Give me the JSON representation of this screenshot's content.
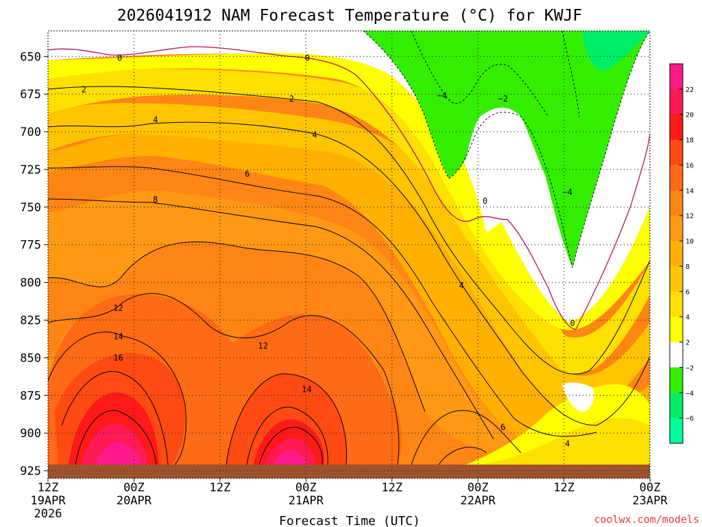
{
  "chart_data": {
    "type": "heatmap",
    "title": "2026041912 NAM Forecast Temperature (°C) for KWJF",
    "xlabel": "Forecast Time (UTC)",
    "ylabel": "",
    "credit": "coolwx.com/models",
    "y_axis": {
      "levels": [
        650,
        675,
        700,
        725,
        750,
        775,
        800,
        825,
        850,
        875,
        900,
        925
      ],
      "ylim": [
        930,
        633
      ],
      "grid": "dotted"
    },
    "x_axis": {
      "ticks": [
        {
          "hour": "12Z",
          "date": "19APR",
          "year": "2026"
        },
        {
          "hour": "00Z",
          "date": "20APR",
          "year": ""
        },
        {
          "hour": "12Z",
          "date": "",
          "year": ""
        },
        {
          "hour": "00Z",
          "date": "21APR",
          "year": ""
        },
        {
          "hour": "12Z",
          "date": "",
          "year": ""
        },
        {
          "hour": "00Z",
          "date": "22APR",
          "year": ""
        },
        {
          "hour": "12Z",
          "date": "",
          "year": ""
        },
        {
          "hour": "00Z",
          "date": "23APR",
          "year": ""
        }
      ],
      "forecast_hours": [
        0,
        12,
        24,
        36,
        48,
        60,
        72,
        84
      ]
    },
    "colorbar": {
      "labels": [
        "22",
        "20",
        "18",
        "16",
        "14",
        "12",
        "10",
        "8",
        "6",
        "4",
        "2",
        "−2",
        "−4",
        "−6"
      ],
      "colors": [
        "#ff1a8c",
        "#ff1a54",
        "#ff1a1a",
        "#ff4a12",
        "#ff6a14",
        "#ff8514",
        "#ff9914",
        "#ffb000",
        "#ffc400",
        "#ffe000",
        "#ffff00",
        "#ffffff",
        "#33ee00",
        "#00ee66",
        "#00ff99"
      ]
    },
    "contour_labels": [
      {
        "text": "0",
        "hour": 10.0,
        "p": 651
      },
      {
        "text": "0",
        "hour": 36.2,
        "p": 651
      },
      {
        "text": "0",
        "hour": 61.0,
        "p": 746
      },
      {
        "text": "0",
        "hour": 73.2,
        "p": 827
      },
      {
        "text": "2",
        "hour": 5.0,
        "p": 672
      },
      {
        "text": "2",
        "hour": 34.0,
        "p": 678
      },
      {
        "text": "−2",
        "hour": 63.5,
        "p": 678
      },
      {
        "text": "−4",
        "hour": 55.0,
        "p": 676
      },
      {
        "text": "−4",
        "hour": 72.5,
        "p": 740
      },
      {
        "text": "4",
        "hour": 15.0,
        "p": 692
      },
      {
        "text": "4",
        "hour": 37.2,
        "p": 702
      },
      {
        "text": "4",
        "hour": 57.7,
        "p": 802
      },
      {
        "text": "4",
        "hour": 72.5,
        "p": 907
      },
      {
        "text": "6",
        "hour": 27.8,
        "p": 728
      },
      {
        "text": "6",
        "hour": 63.5,
        "p": 896
      },
      {
        "text": "8",
        "hour": 15.0,
        "p": 745
      },
      {
        "text": "12",
        "hour": 9.8,
        "p": 817
      },
      {
        "text": "12",
        "hour": 30.0,
        "p": 842
      },
      {
        "text": "14",
        "hour": 9.8,
        "p": 836
      },
      {
        "text": "14",
        "hour": 36.1,
        "p": 871
      },
      {
        "text": "16",
        "hour": 9.8,
        "p": 850
      }
    ]
  }
}
